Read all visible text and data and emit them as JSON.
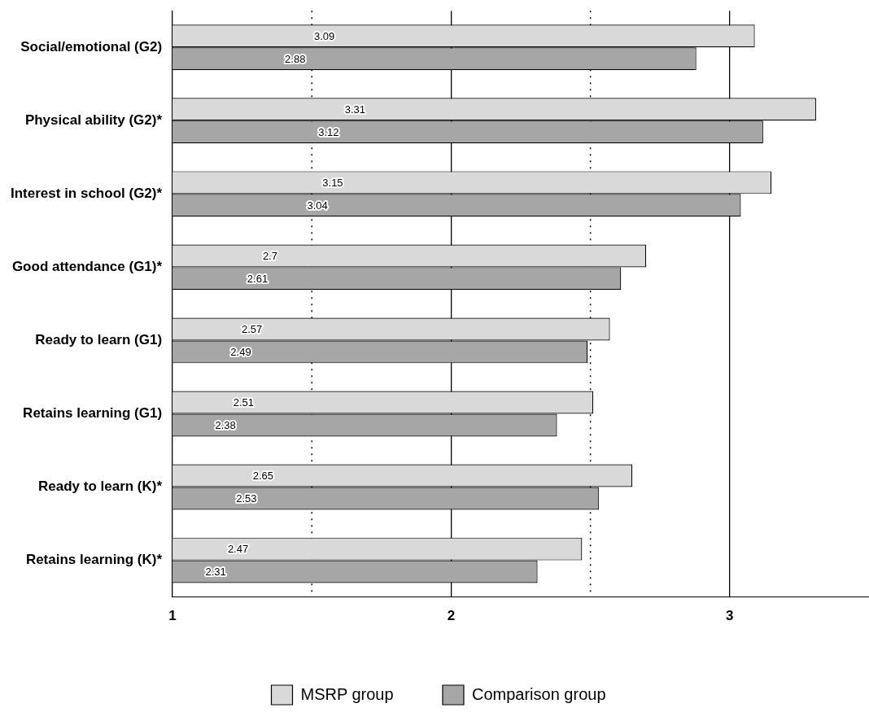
{
  "chart_data": {
    "type": "bar",
    "orientation": "horizontal",
    "categories": [
      "Social/emotional (G2)",
      "Physical ability (G2)*",
      "Interest in school (G2)*",
      "Good attendance (G1)*",
      "Ready to learn (G1)",
      "Retains learning (G1)",
      "Ready to learn (K)*",
      "Retains learning (K)*"
    ],
    "series": [
      {
        "name": "MSRP group",
        "color": "#d9d9d9",
        "values": [
          3.09,
          3.31,
          3.15,
          2.7,
          2.57,
          2.51,
          2.65,
          2.47
        ]
      },
      {
        "name": "Comparison group",
        "color": "#a6a6a6",
        "values": [
          2.88,
          3.12,
          3.04,
          2.61,
          2.49,
          2.38,
          2.53,
          2.31
        ]
      }
    ],
    "xlim": [
      1,
      3.5
    ],
    "xticks": [
      1,
      {
        "value": 1.5,
        "label": null
      },
      2,
      {
        "value": 2.5,
        "label": null
      },
      3
    ],
    "grid": "x",
    "legend": "bottom",
    "data_labels": true
  }
}
